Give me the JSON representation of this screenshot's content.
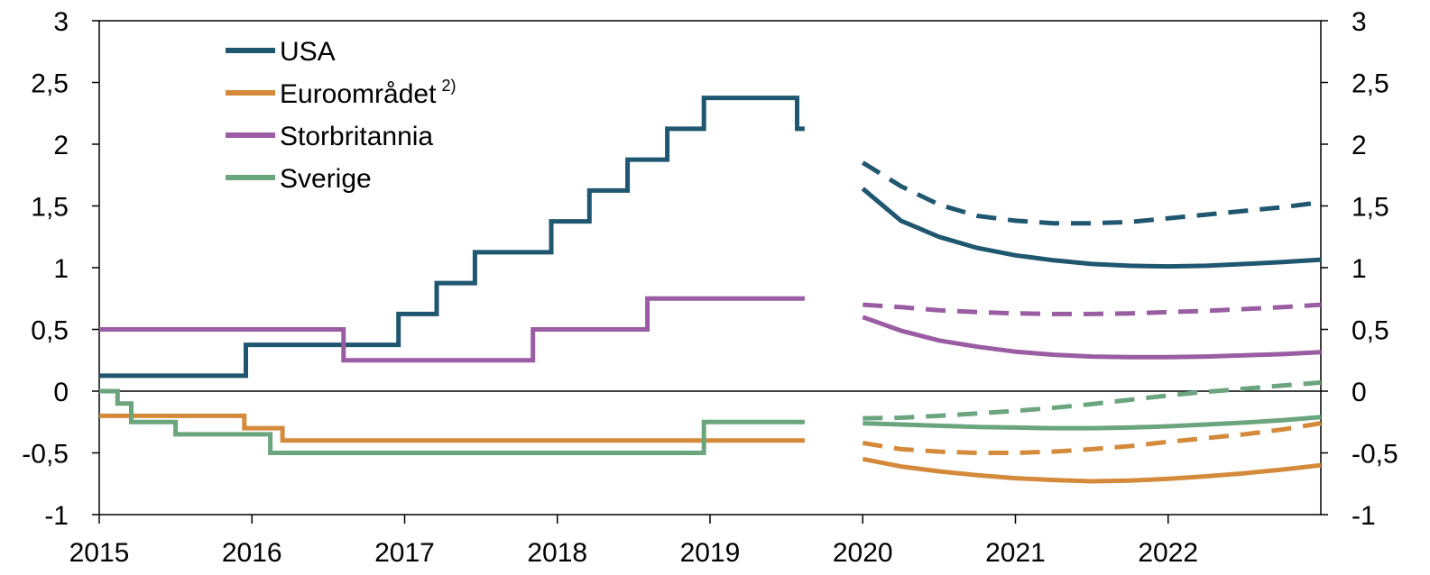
{
  "chart_data": {
    "type": "line",
    "y_ticks": [
      "3",
      "2,5",
      "2",
      "1,5",
      "1",
      "0,5",
      "0",
      "-0,5",
      "-1"
    ],
    "y_tick_values": [
      3,
      2.5,
      2,
      1.5,
      1,
      0.5,
      0,
      -0.5,
      -1
    ],
    "x_ticks": [
      "2015",
      "2016",
      "2017",
      "2018",
      "2019",
      "2020",
      "2021",
      "2022"
    ],
    "x_tick_values": [
      2015,
      2016,
      2017,
      2018,
      2019,
      2020,
      2021,
      2022
    ],
    "xlim": [
      2015,
      2023
    ],
    "ylim": [
      -1,
      3
    ],
    "legend_position": "top-left",
    "series": [
      {
        "name": "USA",
        "superscript": "",
        "color": "#1f5670",
        "history": [
          [
            2015.0,
            0.125
          ],
          [
            2015.96,
            0.125
          ],
          [
            2015.96,
            0.375
          ],
          [
            2016.96,
            0.375
          ],
          [
            2016.96,
            0.625
          ],
          [
            2017.21,
            0.625
          ],
          [
            2017.21,
            0.875
          ],
          [
            2017.46,
            0.875
          ],
          [
            2017.46,
            1.125
          ],
          [
            2017.96,
            1.125
          ],
          [
            2017.96,
            1.375
          ],
          [
            2018.21,
            1.375
          ],
          [
            2018.21,
            1.625
          ],
          [
            2018.46,
            1.625
          ],
          [
            2018.46,
            1.875
          ],
          [
            2018.72,
            1.875
          ],
          [
            2018.72,
            2.125
          ],
          [
            2018.96,
            2.125
          ],
          [
            2018.96,
            2.375
          ],
          [
            2019.57,
            2.375
          ],
          [
            2019.57,
            2.125
          ],
          [
            2019.62,
            2.125
          ]
        ],
        "forecast_solid": [
          [
            2020.0,
            1.64
          ],
          [
            2020.25,
            1.38
          ],
          [
            2020.5,
            1.25
          ],
          [
            2020.75,
            1.16
          ],
          [
            2021.0,
            1.1
          ],
          [
            2021.25,
            1.06
          ],
          [
            2021.5,
            1.03
          ],
          [
            2021.75,
            1.015
          ],
          [
            2022.0,
            1.01
          ],
          [
            2022.25,
            1.015
          ],
          [
            2022.5,
            1.03
          ],
          [
            2022.75,
            1.045
          ],
          [
            2023.0,
            1.065
          ]
        ],
        "forecast_dashed": [
          [
            2020.0,
            1.85
          ],
          [
            2020.25,
            1.66
          ],
          [
            2020.5,
            1.51
          ],
          [
            2020.75,
            1.42
          ],
          [
            2021.0,
            1.38
          ],
          [
            2021.25,
            1.36
          ],
          [
            2021.5,
            1.36
          ],
          [
            2021.75,
            1.37
          ],
          [
            2022.0,
            1.4
          ],
          [
            2022.25,
            1.43
          ],
          [
            2022.5,
            1.46
          ],
          [
            2022.75,
            1.49
          ],
          [
            2023.0,
            1.53
          ]
        ]
      },
      {
        "name": "Euroområdet",
        "superscript": "2)",
        "color": "#d48a3a",
        "history": [
          [
            2015.0,
            -0.2
          ],
          [
            2015.95,
            -0.2
          ],
          [
            2015.95,
            -0.3
          ],
          [
            2016.2,
            -0.3
          ],
          [
            2016.2,
            -0.4
          ],
          [
            2019.62,
            -0.4
          ]
        ],
        "forecast_solid": [
          [
            2020.0,
            -0.55
          ],
          [
            2020.25,
            -0.61
          ],
          [
            2020.5,
            -0.65
          ],
          [
            2020.75,
            -0.68
          ],
          [
            2021.0,
            -0.705
          ],
          [
            2021.25,
            -0.72
          ],
          [
            2021.5,
            -0.73
          ],
          [
            2021.75,
            -0.725
          ],
          [
            2022.0,
            -0.71
          ],
          [
            2022.25,
            -0.69
          ],
          [
            2022.5,
            -0.665
          ],
          [
            2022.75,
            -0.635
          ],
          [
            2023.0,
            -0.6
          ]
        ],
        "forecast_dashed": [
          [
            2020.0,
            -0.42
          ],
          [
            2020.25,
            -0.47
          ],
          [
            2020.5,
            -0.49
          ],
          [
            2020.75,
            -0.5
          ],
          [
            2021.0,
            -0.5
          ],
          [
            2021.25,
            -0.49
          ],
          [
            2021.5,
            -0.47
          ],
          [
            2021.75,
            -0.445
          ],
          [
            2022.0,
            -0.41
          ],
          [
            2022.25,
            -0.38
          ],
          [
            2022.5,
            -0.35
          ],
          [
            2022.75,
            -0.31
          ],
          [
            2023.0,
            -0.26
          ]
        ]
      },
      {
        "name": "Storbritannia",
        "superscript": "",
        "color": "#9a5ca3",
        "history": [
          [
            2015.0,
            0.5
          ],
          [
            2016.6,
            0.5
          ],
          [
            2016.6,
            0.25
          ],
          [
            2017.84,
            0.25
          ],
          [
            2017.84,
            0.5
          ],
          [
            2018.59,
            0.5
          ],
          [
            2018.59,
            0.75
          ],
          [
            2019.62,
            0.75
          ]
        ],
        "forecast_solid": [
          [
            2020.0,
            0.6
          ],
          [
            2020.25,
            0.49
          ],
          [
            2020.5,
            0.41
          ],
          [
            2020.75,
            0.36
          ],
          [
            2021.0,
            0.32
          ],
          [
            2021.25,
            0.295
          ],
          [
            2021.5,
            0.28
          ],
          [
            2021.75,
            0.275
          ],
          [
            2022.0,
            0.275
          ],
          [
            2022.25,
            0.28
          ],
          [
            2022.5,
            0.29
          ],
          [
            2022.75,
            0.3
          ],
          [
            2023.0,
            0.315
          ]
        ],
        "forecast_dashed": [
          [
            2020.0,
            0.7
          ],
          [
            2020.25,
            0.68
          ],
          [
            2020.5,
            0.655
          ],
          [
            2020.75,
            0.64
          ],
          [
            2021.0,
            0.63
          ],
          [
            2021.25,
            0.625
          ],
          [
            2021.5,
            0.625
          ],
          [
            2021.75,
            0.63
          ],
          [
            2022.0,
            0.64
          ],
          [
            2022.25,
            0.65
          ],
          [
            2022.5,
            0.665
          ],
          [
            2022.75,
            0.68
          ],
          [
            2023.0,
            0.7
          ]
        ]
      },
      {
        "name": "Sverige",
        "superscript": "",
        "color": "#6aa57e",
        "history": [
          [
            2015.0,
            0.0
          ],
          [
            2015.12,
            0.0
          ],
          [
            2015.12,
            -0.1
          ],
          [
            2015.21,
            -0.1
          ],
          [
            2015.21,
            -0.25
          ],
          [
            2015.5,
            -0.25
          ],
          [
            2015.5,
            -0.35
          ],
          [
            2016.12,
            -0.35
          ],
          [
            2016.12,
            -0.5
          ],
          [
            2018.96,
            -0.5
          ],
          [
            2018.96,
            -0.25
          ],
          [
            2019.62,
            -0.25
          ]
        ],
        "forecast_solid": [
          [
            2020.0,
            -0.26
          ],
          [
            2020.25,
            -0.27
          ],
          [
            2020.5,
            -0.28
          ],
          [
            2020.75,
            -0.29
          ],
          [
            2021.0,
            -0.295
          ],
          [
            2021.25,
            -0.3
          ],
          [
            2021.5,
            -0.3
          ],
          [
            2021.75,
            -0.295
          ],
          [
            2022.0,
            -0.285
          ],
          [
            2022.25,
            -0.27
          ],
          [
            2022.5,
            -0.255
          ],
          [
            2022.75,
            -0.235
          ],
          [
            2023.0,
            -0.21
          ]
        ],
        "forecast_dashed": [
          [
            2020.0,
            -0.22
          ],
          [
            2020.25,
            -0.215
          ],
          [
            2020.5,
            -0.2
          ],
          [
            2020.75,
            -0.18
          ],
          [
            2021.0,
            -0.16
          ],
          [
            2021.25,
            -0.135
          ],
          [
            2021.5,
            -0.105
          ],
          [
            2021.75,
            -0.07
          ],
          [
            2022.0,
            -0.035
          ],
          [
            2022.25,
            -0.005
          ],
          [
            2022.5,
            0.02
          ],
          [
            2022.75,
            0.045
          ],
          [
            2023.0,
            0.07
          ]
        ]
      }
    ]
  }
}
